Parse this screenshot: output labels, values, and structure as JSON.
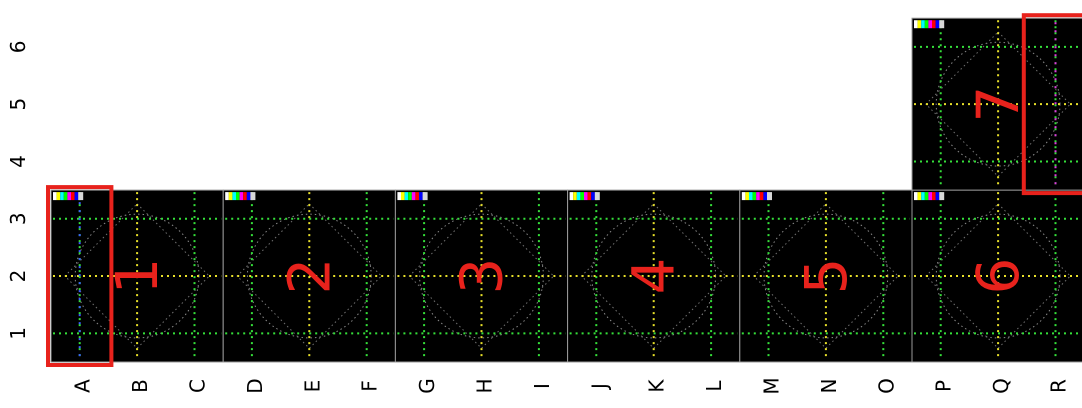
{
  "row_labels": [
    "1",
    "2",
    "3",
    "4",
    "5",
    "6"
  ],
  "column_labels": [
    "A",
    "B",
    "C",
    "D",
    "E",
    "F",
    "G",
    "H",
    "I",
    "J",
    "K",
    "L",
    "M",
    "N",
    "O",
    "P",
    "Q",
    "R"
  ],
  "panels": [
    {
      "number": "1",
      "columns": [
        "A",
        "B",
        "C"
      ],
      "rows": [
        "1",
        "2",
        "3"
      ]
    },
    {
      "number": "2",
      "columns": [
        "D",
        "E",
        "F"
      ],
      "rows": [
        "1",
        "2",
        "3"
      ]
    },
    {
      "number": "3",
      "columns": [
        "G",
        "H",
        "I"
      ],
      "rows": [
        "1",
        "2",
        "3"
      ]
    },
    {
      "number": "4",
      "columns": [
        "J",
        "K",
        "L"
      ],
      "rows": [
        "1",
        "2",
        "3"
      ]
    },
    {
      "number": "5",
      "columns": [
        "M",
        "N",
        "O"
      ],
      "rows": [
        "1",
        "2",
        "3"
      ]
    },
    {
      "number": "6",
      "columns": [
        "P",
        "Q",
        "R"
      ],
      "rows": [
        "1",
        "2",
        "3"
      ]
    },
    {
      "number": "7",
      "columns": [
        "P",
        "Q",
        "R"
      ],
      "rows": [
        "4",
        "5",
        "6"
      ]
    }
  ],
  "highlights": [
    {
      "name": "column-A-rows-1-3",
      "columns": [
        "A"
      ],
      "rows": [
        "1",
        "2",
        "3"
      ]
    },
    {
      "name": "column-R-rows-4-6",
      "columns": [
        "R"
      ],
      "rows": [
        "4",
        "5",
        "6"
      ]
    }
  ],
  "colors": {
    "panel_background": "#000000",
    "number_color": "#e8221c",
    "highlight_color": "#e8221c",
    "grid_green": "#35e03a",
    "grid_yellow": "#e8e02a",
    "grid_blue": "#3a5cff",
    "grid_magenta": "#e03ae0",
    "circle_color": "#8a8a8a"
  }
}
